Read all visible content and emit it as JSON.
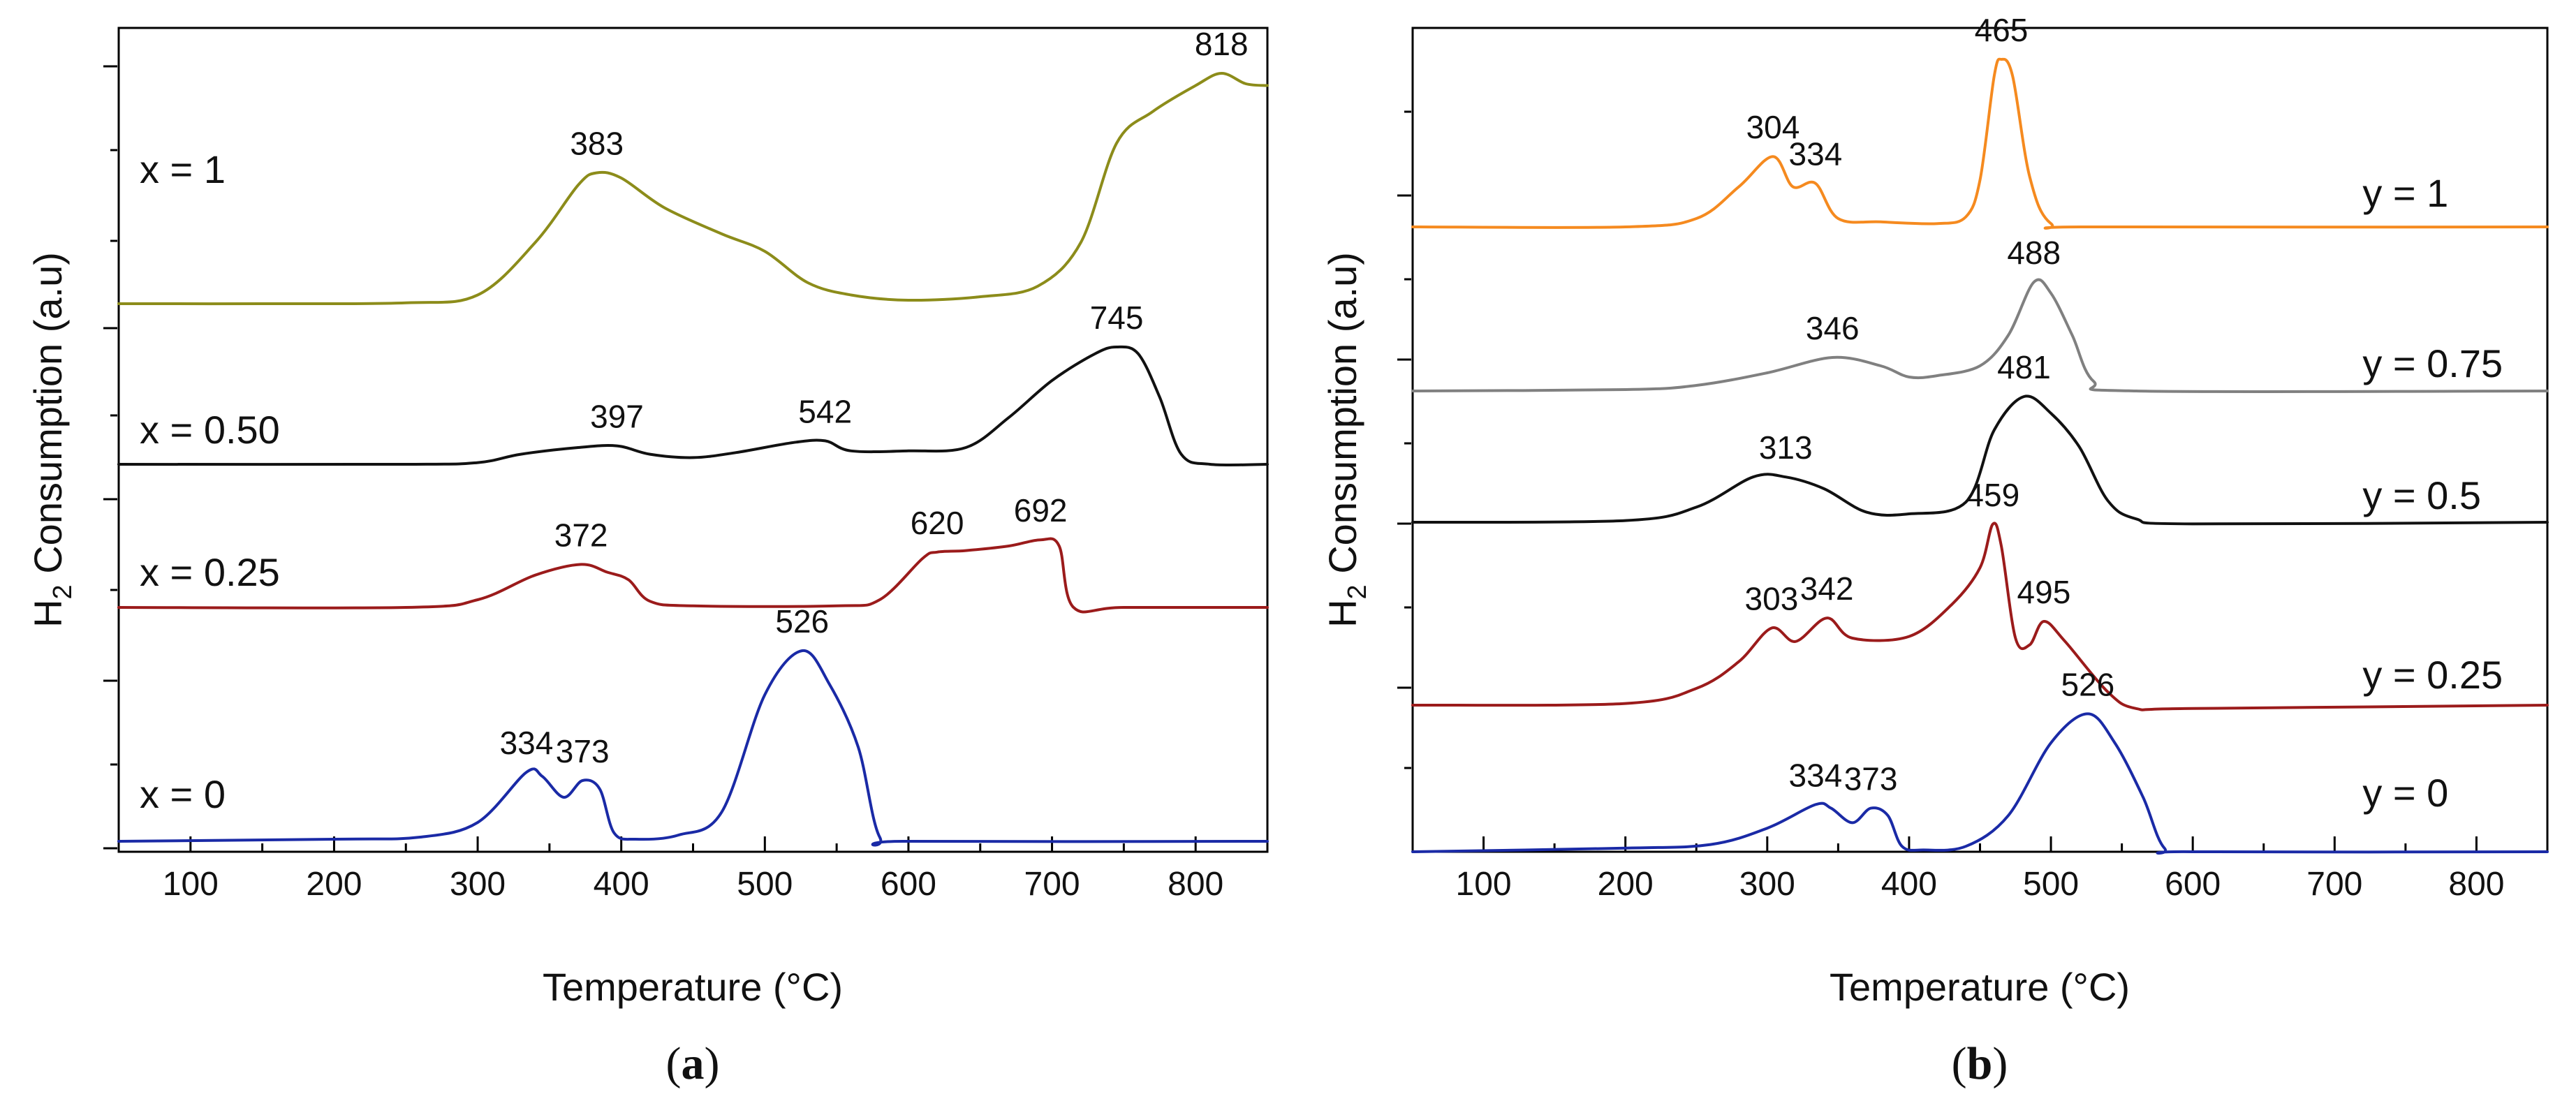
{
  "chart_data": [
    {
      "type": "line",
      "panel": "(a)",
      "panel_letter": "a",
      "xlabel": "Temperature (°C)",
      "ylabel_main": "H",
      "ylabel_sub": "2",
      "ylabel_rest": " Consumption (a.u)",
      "xlim": [
        50,
        850
      ],
      "xticks": [
        100,
        200,
        300,
        400,
        500,
        600,
        700,
        800
      ],
      "series": [
        {
          "name": "x = 1",
          "color": "#8c8c1a",
          "baseline": 0.0,
          "label_x": 100,
          "label_y": 0.62,
          "points": [
            [
              50,
              0.0
            ],
            [
              150,
              0.0
            ],
            [
              250,
              0.005
            ],
            [
              300,
              0.05
            ],
            [
              340,
              0.35
            ],
            [
              370,
              0.68
            ],
            [
              383,
              0.75
            ],
            [
              400,
              0.72
            ],
            [
              430,
              0.55
            ],
            [
              470,
              0.4
            ],
            [
              500,
              0.3
            ],
            [
              530,
              0.12
            ],
            [
              560,
              0.05
            ],
            [
              600,
              0.02
            ],
            [
              650,
              0.04
            ],
            [
              690,
              0.1
            ],
            [
              720,
              0.35
            ],
            [
              745,
              0.92
            ],
            [
              770,
              1.1
            ],
            [
              800,
              1.25
            ],
            [
              818,
              1.32
            ],
            [
              835,
              1.26
            ],
            [
              850,
              1.25
            ]
          ],
          "peaks": [
            {
              "x": 383,
              "y": 0.75,
              "label": "383"
            },
            {
              "x": 818,
              "y": 1.32,
              "label": "818"
            }
          ]
        },
        {
          "name": "x = 0.50",
          "color": "#111111",
          "baseline": 0.0,
          "label_x": 100,
          "label_y": 0.05,
          "points": [
            [
              50,
              0.0
            ],
            [
              250,
              0.0
            ],
            [
              300,
              0.01
            ],
            [
              330,
              0.06
            ],
            [
              370,
              0.1
            ],
            [
              397,
              0.11
            ],
            [
              420,
              0.06
            ],
            [
              450,
              0.04
            ],
            [
              480,
              0.07
            ],
            [
              520,
              0.13
            ],
            [
              542,
              0.14
            ],
            [
              560,
              0.08
            ],
            [
              600,
              0.08
            ],
            [
              640,
              0.1
            ],
            [
              670,
              0.28
            ],
            [
              700,
              0.5
            ],
            [
              730,
              0.66
            ],
            [
              745,
              0.7
            ],
            [
              760,
              0.66
            ],
            [
              775,
              0.4
            ],
            [
              790,
              0.06
            ],
            [
              810,
              0.0
            ],
            [
              850,
              0.0
            ]
          ],
          "peaks": [
            {
              "x": 397,
              "y": 0.11,
              "label": "397"
            },
            {
              "x": 542,
              "y": 0.14,
              "label": "542"
            },
            {
              "x": 745,
              "y": 0.7,
              "label": "745"
            }
          ]
        },
        {
          "name": "x = 0.25",
          "color": "#9b1b1b",
          "baseline": 0.0,
          "label_x": 100,
          "label_y": 0.06,
          "points": [
            [
              50,
              0.0
            ],
            [
              250,
              0.0
            ],
            [
              300,
              0.05
            ],
            [
              340,
              0.21
            ],
            [
              372,
              0.28
            ],
            [
              390,
              0.23
            ],
            [
              405,
              0.18
            ],
            [
              420,
              0.04
            ],
            [
              450,
              0.01
            ],
            [
              550,
              0.01
            ],
            [
              580,
              0.05
            ],
            [
              610,
              0.32
            ],
            [
              620,
              0.36
            ],
            [
              640,
              0.37
            ],
            [
              670,
              0.4
            ],
            [
              692,
              0.44
            ],
            [
              705,
              0.4
            ],
            [
              715,
              0.0
            ],
            [
              750,
              0.0
            ],
            [
              850,
              0.0
            ]
          ],
          "peaks": [
            {
              "x": 372,
              "y": 0.28,
              "label": "372"
            },
            {
              "x": 620,
              "y": 0.36,
              "label": "620"
            },
            {
              "x": 692,
              "y": 0.44,
              "label": "692"
            }
          ]
        },
        {
          "name": "x = 0",
          "color": "#1a2aa6",
          "baseline": 0.0,
          "label_x": 100,
          "label_y": 0.1,
          "points": [
            [
              50,
              0.0
            ],
            [
              200,
              0.01
            ],
            [
              260,
              0.02
            ],
            [
              300,
              0.09
            ],
            [
              334,
              0.33
            ],
            [
              345,
              0.31
            ],
            [
              360,
              0.21
            ],
            [
              373,
              0.29
            ],
            [
              385,
              0.25
            ],
            [
              395,
              0.04
            ],
            [
              410,
              0.01
            ],
            [
              440,
              0.03
            ],
            [
              470,
              0.14
            ],
            [
              500,
              0.7
            ],
            [
              526,
              0.91
            ],
            [
              545,
              0.75
            ],
            [
              565,
              0.45
            ],
            [
              580,
              0.02
            ],
            [
              600,
              0.0
            ],
            [
              850,
              0.0
            ]
          ],
          "peaks": [
            {
              "x": 334,
              "y": 0.33,
              "label": "334"
            },
            {
              "x": 373,
              "y": 0.29,
              "label": "373"
            },
            {
              "x": 526,
              "y": 0.91,
              "label": "526"
            }
          ]
        }
      ]
    },
    {
      "type": "line",
      "panel": "(b)",
      "panel_letter": "b",
      "xlabel": "Temperature (°C)",
      "ylabel_main": "H",
      "ylabel_sub": "2",
      "ylabel_rest": " Consumption (a.u)",
      "xlim": [
        50,
        850
      ],
      "xticks": [
        100,
        200,
        300,
        400,
        500,
        600,
        700,
        800
      ],
      "series": [
        {
          "name": "y = 1",
          "color": "#f58a1f",
          "baseline": 0.0,
          "label_x": 700,
          "label_y": 0.12,
          "points": [
            [
              50,
              0.0
            ],
            [
              200,
              0.0
            ],
            [
              250,
              0.05
            ],
            [
              280,
              0.24
            ],
            [
              304,
              0.42
            ],
            [
              318,
              0.24
            ],
            [
              334,
              0.26
            ],
            [
              350,
              0.05
            ],
            [
              380,
              0.03
            ],
            [
              420,
              0.02
            ],
            [
              440,
              0.06
            ],
            [
              450,
              0.28
            ],
            [
              460,
              0.9
            ],
            [
              465,
              1.0
            ],
            [
              473,
              0.9
            ],
            [
              485,
              0.3
            ],
            [
              500,
              0.02
            ],
            [
              530,
              0.0
            ],
            [
              850,
              0.0
            ]
          ],
          "peaks": [
            {
              "x": 304,
              "y": 0.42,
              "label": "304"
            },
            {
              "x": 334,
              "y": 0.26,
              "label": "334"
            },
            {
              "x": 465,
              "y": 1.0,
              "label": "465"
            }
          ]
        },
        {
          "name": "y = 0.75",
          "color": "#808080",
          "baseline": 0.0,
          "label_x": 700,
          "label_y": 0.1,
          "points": [
            [
              50,
              0.0
            ],
            [
              200,
              0.01
            ],
            [
              250,
              0.04
            ],
            [
              300,
              0.13
            ],
            [
              346,
              0.24
            ],
            [
              380,
              0.18
            ],
            [
              400,
              0.1
            ],
            [
              420,
              0.11
            ],
            [
              450,
              0.18
            ],
            [
              470,
              0.4
            ],
            [
              488,
              0.78
            ],
            [
              500,
              0.7
            ],
            [
              515,
              0.4
            ],
            [
              530,
              0.07
            ],
            [
              560,
              0.0
            ],
            [
              850,
              0.0
            ]
          ],
          "peaks": [
            {
              "x": 346,
              "y": 0.24,
              "label": "346"
            },
            {
              "x": 488,
              "y": 0.78,
              "label": "488"
            }
          ]
        },
        {
          "name": "y = 0.5",
          "color": "#111111",
          "baseline": 0.0,
          "label_x": 700,
          "label_y": 0.08,
          "points": [
            [
              50,
              0.0
            ],
            [
              200,
              0.01
            ],
            [
              250,
              0.09
            ],
            [
              290,
              0.27
            ],
            [
              313,
              0.27
            ],
            [
              340,
              0.2
            ],
            [
              370,
              0.06
            ],
            [
              400,
              0.05
            ],
            [
              440,
              0.12
            ],
            [
              460,
              0.55
            ],
            [
              481,
              0.75
            ],
            [
              500,
              0.65
            ],
            [
              520,
              0.45
            ],
            [
              540,
              0.13
            ],
            [
              560,
              0.02
            ],
            [
              600,
              -0.01
            ],
            [
              850,
              0.0
            ]
          ],
          "peaks": [
            {
              "x": 313,
              "y": 0.27,
              "label": "313"
            },
            {
              "x": 481,
              "y": 0.75,
              "label": "481"
            }
          ]
        },
        {
          "name": "y = 0.25",
          "color": "#9b1b1b",
          "baseline": 0.0,
          "label_x": 700,
          "label_y": 0.1,
          "points": [
            [
              50,
              0.0
            ],
            [
              200,
              0.01
            ],
            [
              250,
              0.1
            ],
            [
              280,
              0.26
            ],
            [
              303,
              0.46
            ],
            [
              320,
              0.38
            ],
            [
              342,
              0.52
            ],
            [
              360,
              0.4
            ],
            [
              400,
              0.41
            ],
            [
              430,
              0.6
            ],
            [
              450,
              0.82
            ],
            [
              459,
              1.08
            ],
            [
              465,
              0.95
            ],
            [
              475,
              0.4
            ],
            [
              485,
              0.36
            ],
            [
              495,
              0.5
            ],
            [
              510,
              0.38
            ],
            [
              540,
              0.08
            ],
            [
              560,
              -0.02
            ],
            [
              600,
              -0.02
            ],
            [
              850,
              0.0
            ]
          ],
          "peaks": [
            {
              "x": 303,
              "y": 0.46,
              "label": "303"
            },
            {
              "x": 342,
              "y": 0.52,
              "label": "342"
            },
            {
              "x": 459,
              "y": 1.08,
              "label": "459"
            },
            {
              "x": 495,
              "y": 0.5,
              "label": "495"
            }
          ]
        },
        {
          "name": "y = 0",
          "color": "#1a2aa6",
          "baseline": 0.0,
          "label_x": 700,
          "label_y": 0.25,
          "points": [
            [
              50,
              0.0
            ],
            [
              200,
              0.02
            ],
            [
              260,
              0.04
            ],
            [
              300,
              0.13
            ],
            [
              334,
              0.26
            ],
            [
              345,
              0.24
            ],
            [
              360,
              0.16
            ],
            [
              373,
              0.24
            ],
            [
              385,
              0.2
            ],
            [
              395,
              0.03
            ],
            [
              410,
              0.01
            ],
            [
              440,
              0.03
            ],
            [
              470,
              0.2
            ],
            [
              500,
              0.6
            ],
            [
              526,
              0.76
            ],
            [
              545,
              0.6
            ],
            [
              565,
              0.3
            ],
            [
              580,
              0.02
            ],
            [
              600,
              0.0
            ],
            [
              850,
              0.0
            ]
          ],
          "peaks": [
            {
              "x": 334,
              "y": 0.26,
              "label": "334"
            },
            {
              "x": 373,
              "y": 0.24,
              "label": "373"
            },
            {
              "x": 526,
              "y": 0.76,
              "label": "526"
            }
          ]
        }
      ]
    }
  ]
}
